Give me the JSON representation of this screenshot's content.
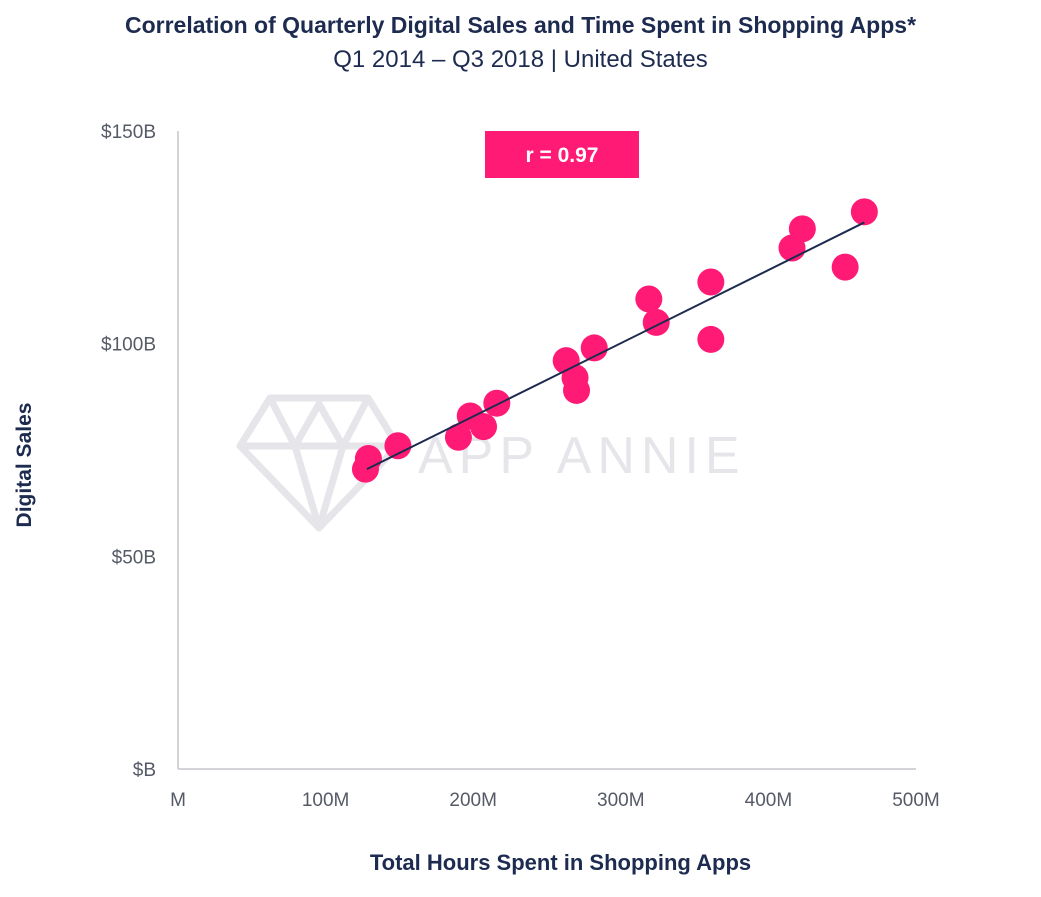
{
  "chart_data": {
    "type": "scatter",
    "title": "Correlation of Quarterly Digital Sales and Time Spent in Shopping Apps*",
    "subtitle": "Q1 2014 – Q3 2018 | United States",
    "xlabel": "Total Hours Spent in Shopping Apps",
    "ylabel": "Digital Sales",
    "xlim": [
      0,
      500
    ],
    "ylim": [
      0,
      150
    ],
    "x_ticks": [
      0,
      100,
      200,
      300,
      400,
      500
    ],
    "x_tick_labels": [
      "M",
      "100M",
      "200M",
      "300M",
      "400M",
      "500M"
    ],
    "y_ticks": [
      0,
      50,
      100,
      150
    ],
    "y_tick_labels": [
      "$B",
      "$50B",
      "$100B",
      "$150B"
    ],
    "annotation": "r = 0.97",
    "watermark": "APP ANNIE",
    "grid": false,
    "point_color": "#ff1a75",
    "trend_color": "#1c2b4f",
    "trendline": {
      "x": [
        128,
        465
      ],
      "y": [
        70.5,
        128.5
      ]
    },
    "points": [
      {
        "x": 127,
        "y": 70.5
      },
      {
        "x": 129,
        "y": 73
      },
      {
        "x": 149,
        "y": 76
      },
      {
        "x": 190,
        "y": 78
      },
      {
        "x": 198,
        "y": 83
      },
      {
        "x": 207,
        "y": 80.5
      },
      {
        "x": 216,
        "y": 86
      },
      {
        "x": 263,
        "y": 96
      },
      {
        "x": 269,
        "y": 92
      },
      {
        "x": 270,
        "y": 89
      },
      {
        "x": 282,
        "y": 99
      },
      {
        "x": 319,
        "y": 110.5
      },
      {
        "x": 324,
        "y": 105
      },
      {
        "x": 361,
        "y": 114.5
      },
      {
        "x": 361,
        "y": 101
      },
      {
        "x": 416,
        "y": 122.5
      },
      {
        "x": 423,
        "y": 127
      },
      {
        "x": 452,
        "y": 118
      },
      {
        "x": 465,
        "y": 131
      }
    ]
  }
}
